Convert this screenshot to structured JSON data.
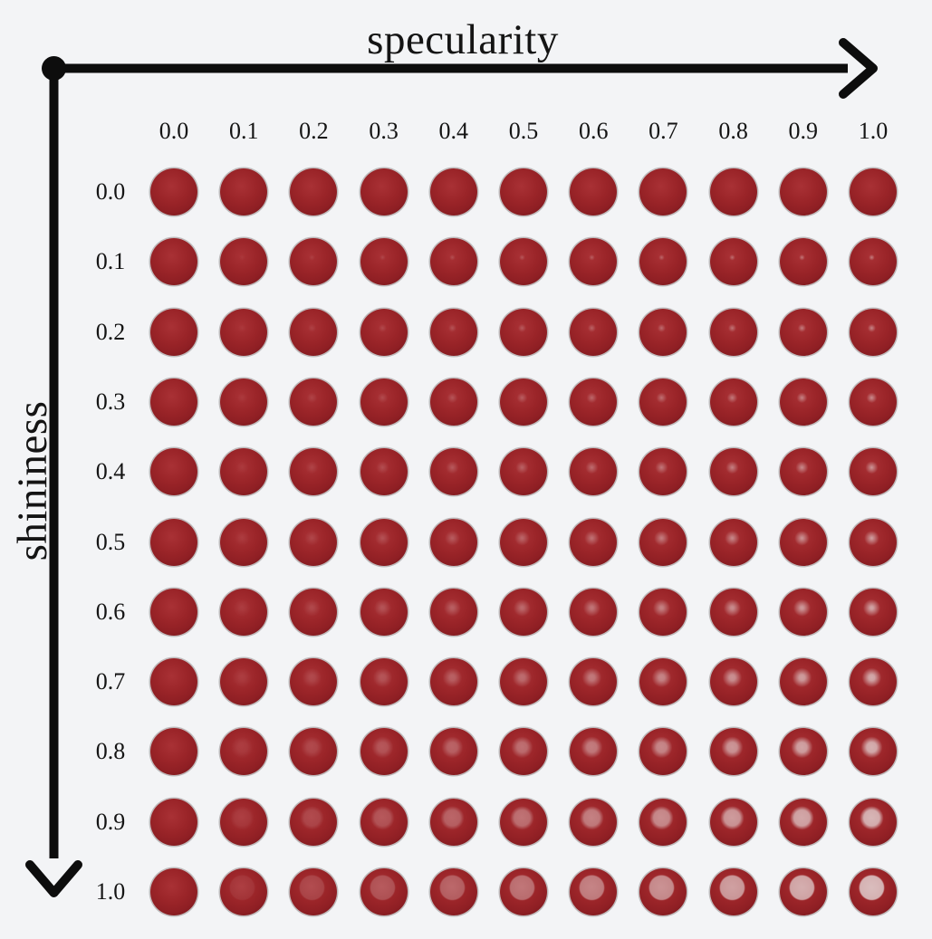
{
  "figure": {
    "x_axis": {
      "label": "specularity",
      "tick_labels": [
        "0.0",
        "0.1",
        "0.2",
        "0.3",
        "0.4",
        "0.5",
        "0.6",
        "0.7",
        "0.8",
        "0.9",
        "1.0"
      ]
    },
    "y_axis": {
      "label": "shininess",
      "tick_labels": [
        "0.0",
        "0.1",
        "0.2",
        "0.3",
        "0.4",
        "0.5",
        "0.6",
        "0.7",
        "0.8",
        "0.9",
        "1.0"
      ]
    }
  },
  "colors": {
    "background": "#f3f4f6",
    "axis": "#0d0d0d",
    "text": "#141414",
    "sphere_base_center": "#a93135",
    "sphere_base_mid": "#9a2428",
    "sphere_base_edge": "#7a171c",
    "sphere_base_rim": "#5c1014",
    "sphere_highlight": "#dfcccc"
  },
  "chart_data": {
    "type": "heatmap",
    "title": "",
    "xlabel": "specularity",
    "ylabel": "shininess",
    "x": [
      0.0,
      0.1,
      0.2,
      0.3,
      0.4,
      0.5,
      0.6,
      0.7,
      0.8,
      0.9,
      1.0
    ],
    "y": [
      0.0,
      0.1,
      0.2,
      0.3,
      0.4,
      0.5,
      0.6,
      0.7,
      0.8,
      0.9,
      1.0
    ],
    "grid": "11x11 matrix of rendered red spheres, one per (specularity, shininess) pair",
    "encoding": {
      "cell": "rendered dark-red sphere with a specular highlight",
      "x_effect": "higher specularity (left to right) makes the highlight brighter / more intense",
      "y_effect": "higher shininess (top to bottom) makes the highlight larger, flatter and more disk-like; bottom row shows a large flat pale disk"
    },
    "legend_position": "none",
    "grid_lines": false
  }
}
